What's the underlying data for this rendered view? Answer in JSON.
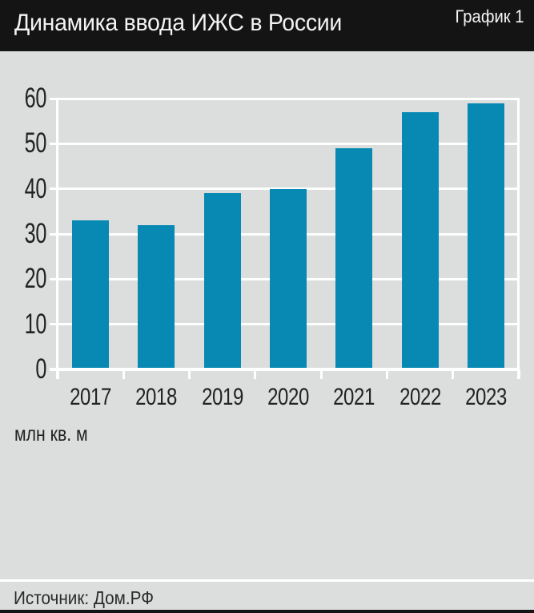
{
  "header": {
    "title": "Динамика ввода ИЖС в России",
    "chart_label": "График 1"
  },
  "chart_data": {
    "type": "bar",
    "title": "Динамика ввода ИЖС в России",
    "categories": [
      "2017",
      "2018",
      "2019",
      "2020",
      "2021",
      "2022",
      "2023"
    ],
    "values": [
      33,
      32,
      39,
      40,
      49,
      57,
      59
    ],
    "xlabel": "",
    "ylabel": "млн кв. м",
    "ylim": [
      0,
      60
    ],
    "yticks": [
      0,
      10,
      20,
      30,
      40,
      50,
      60
    ],
    "grid": true,
    "legend": false,
    "bar_color": "#0889b4"
  },
  "footer": {
    "source": "Источник: Дом.РФ"
  },
  "colors": {
    "header_bg": "#141414",
    "page_bg": "#dcdddd",
    "bar": "#0889b4",
    "grid": "#ffffff",
    "text": "#222222",
    "title_text": "#f4f4f4"
  }
}
